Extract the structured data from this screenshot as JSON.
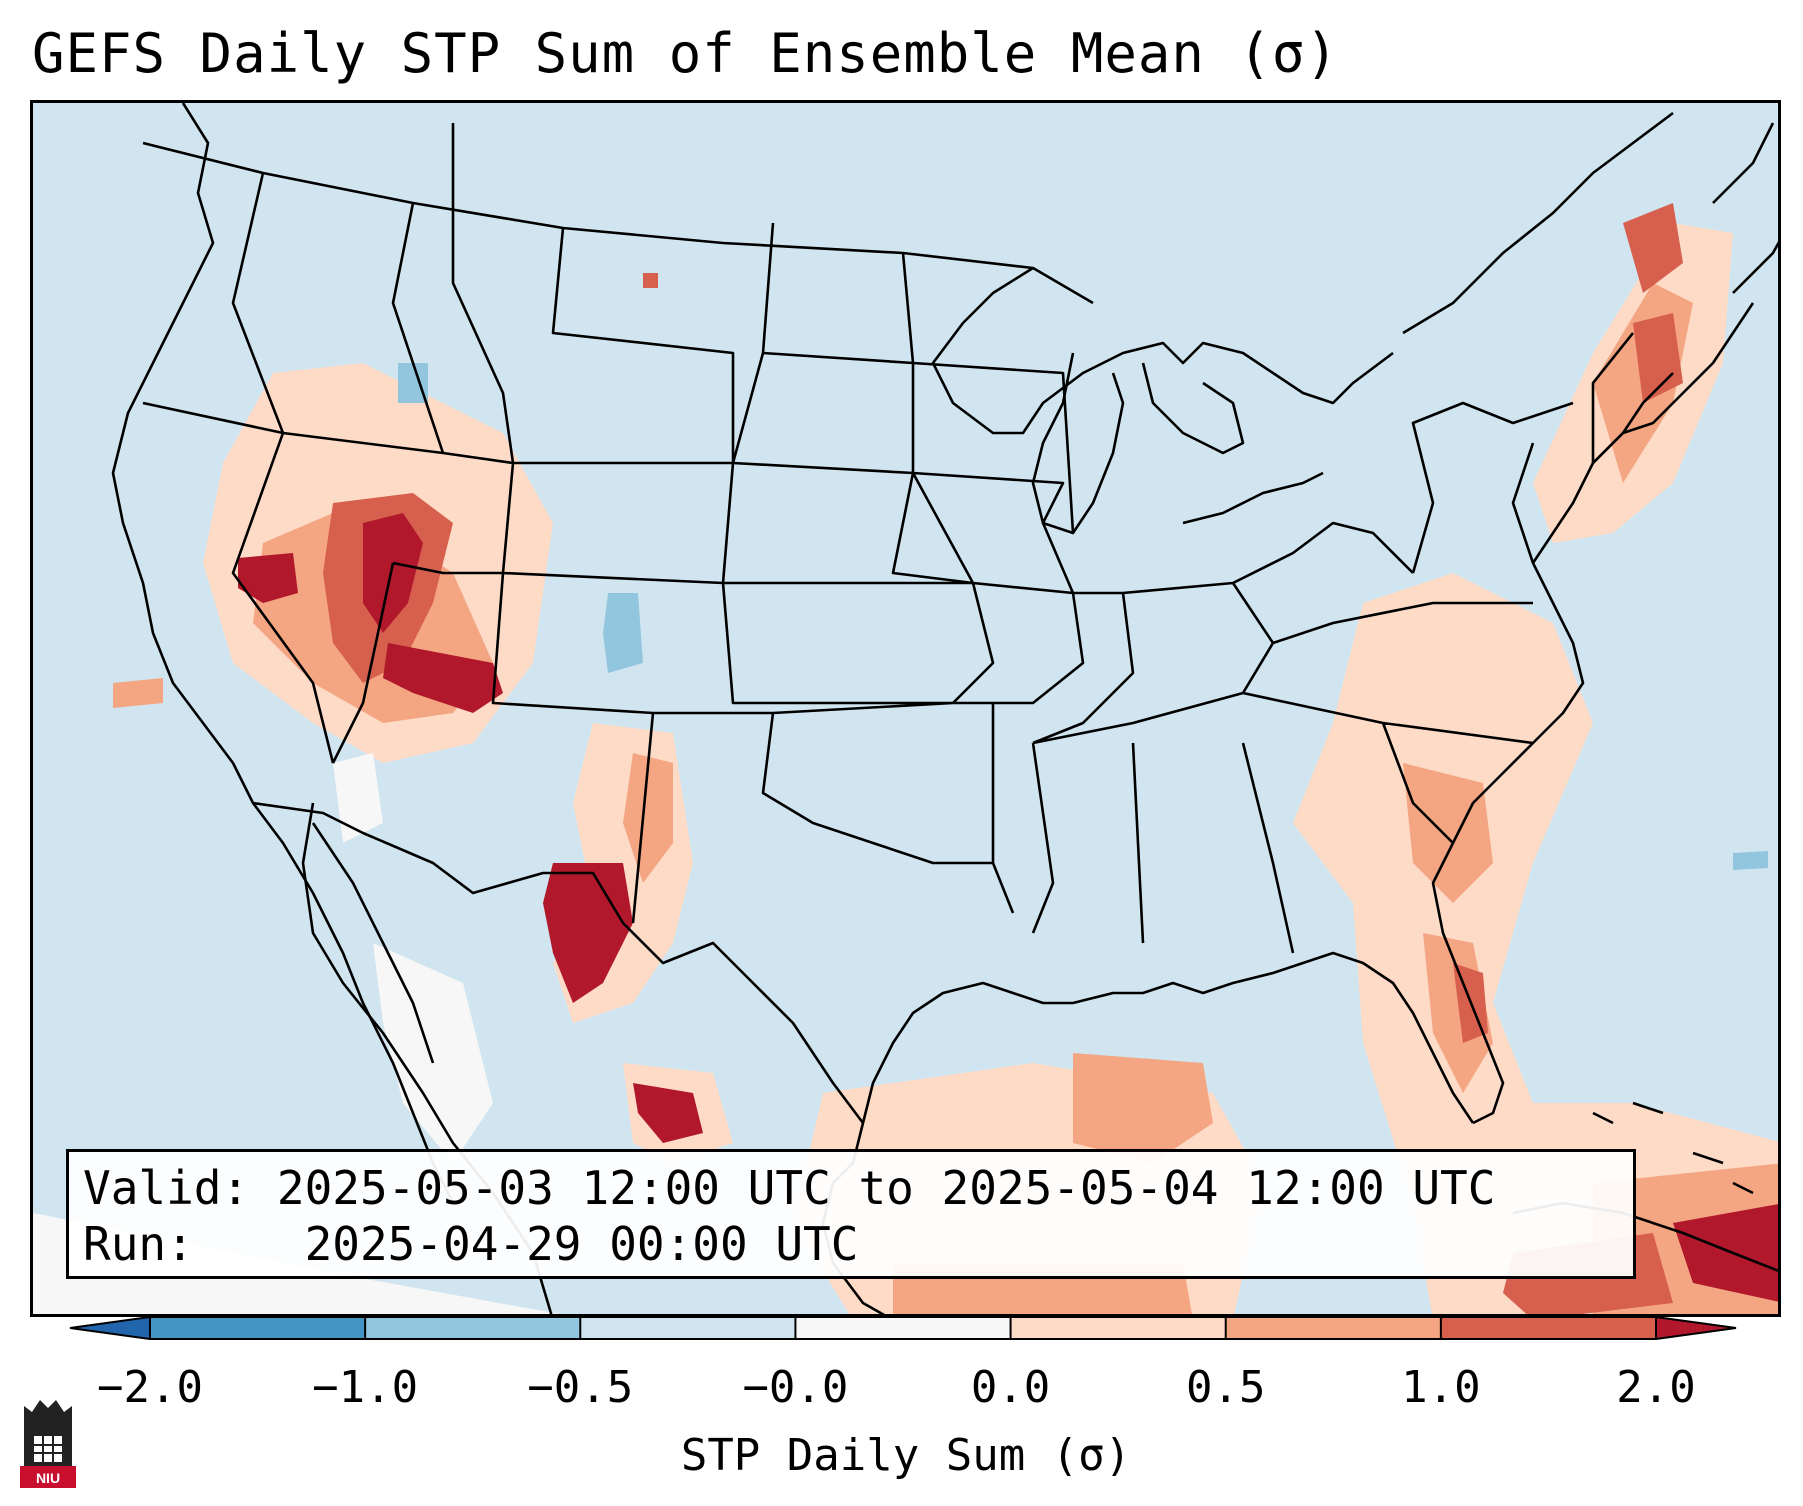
{
  "title": "GEFS Daily STP Sum of Ensemble Mean (σ)",
  "info": {
    "valid_label": "Valid:",
    "valid_value": "2025-05-03 12:00 UTC to 2025-05-04 12:00 UTC",
    "run_label": "Run:",
    "run_value": "2025-04-29 00:00 UTC"
  },
  "colorbar": {
    "label": "STP Daily Sum (σ)",
    "ticks": [
      "−2.0",
      "−1.0",
      "−0.5",
      "−0.0",
      "0.0",
      "0.5",
      "1.0",
      "2.0"
    ],
    "colors": [
      "#2166ac",
      "#4393c3",
      "#92c5de",
      "#d1e5f0",
      "#f7f7f7",
      "#fddbc7",
      "#f4a582",
      "#d6604d",
      "#b2182b"
    ]
  },
  "legend_colors": {
    "ocean_background": "#d1e5f0",
    "near_zero": "#f7f7f7",
    "low_positive": "#fddbc7",
    "mid_positive": "#f4a582",
    "high_positive": "#d6604d",
    "max_positive": "#b2182b",
    "low_negative": "#92c5de"
  },
  "logo": {
    "text": "NIU",
    "icon": "university-tower-icon"
  }
}
